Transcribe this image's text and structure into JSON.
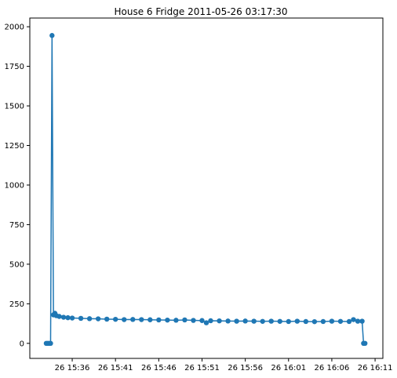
{
  "chart_data": {
    "type": "line",
    "title": "House 6 Fridge 2011-05-26 03:17:30",
    "xlabel": "",
    "ylabel": "",
    "x_unit": "minutes (time of day)",
    "xlim": [
      "15:31:06",
      "16:11:54"
    ],
    "ylim": [
      -95,
      2055
    ],
    "grid": false,
    "legend": "none",
    "marker": "circle",
    "color": "#1f77b4",
    "x_ticks": [
      {
        "value": "15:36",
        "label": "26 15:36"
      },
      {
        "value": "15:41",
        "label": "26 15:41"
      },
      {
        "value": "15:46",
        "label": "26 15:46"
      },
      {
        "value": "15:51",
        "label": "26 15:51"
      },
      {
        "value": "15:56",
        "label": "26 15:56"
      },
      {
        "value": "16:01",
        "label": "26 16:01"
      },
      {
        "value": "16:06",
        "label": "26 16:06"
      },
      {
        "value": "16:11",
        "label": "26 16:11"
      }
    ],
    "y_ticks": [
      0,
      250,
      500,
      750,
      1000,
      1250,
      1500,
      1750,
      2000
    ],
    "series": [
      {
        "points": [
          [
            "15:33:00",
            0
          ],
          [
            "15:33:10",
            0
          ],
          [
            "15:33:20",
            0
          ],
          [
            "15:33:30",
            0
          ],
          [
            "15:33:40",
            1945
          ],
          [
            "15:33:50",
            180
          ],
          [
            "15:34:00",
            190
          ],
          [
            "15:34:10",
            175
          ],
          [
            "15:34:30",
            170
          ],
          [
            "15:35:00",
            165
          ],
          [
            "15:35:30",
            162
          ],
          [
            "15:36:00",
            160
          ],
          [
            "15:37:00",
            158
          ],
          [
            "15:38:00",
            156
          ],
          [
            "15:39:00",
            155
          ],
          [
            "15:40:00",
            153
          ],
          [
            "15:41:00",
            152
          ],
          [
            "15:42:00",
            150
          ],
          [
            "15:43:00",
            151
          ],
          [
            "15:44:00",
            150
          ],
          [
            "15:45:00",
            149
          ],
          [
            "15:46:00",
            148
          ],
          [
            "15:47:00",
            147
          ],
          [
            "15:48:00",
            146
          ],
          [
            "15:49:00",
            148
          ],
          [
            "15:50:00",
            145
          ],
          [
            "15:51:00",
            144
          ],
          [
            "15:51:30",
            130
          ],
          [
            "15:52:00",
            143
          ],
          [
            "15:53:00",
            142
          ],
          [
            "15:54:00",
            141
          ],
          [
            "15:55:00",
            140
          ],
          [
            "15:56:00",
            141
          ],
          [
            "15:57:00",
            140
          ],
          [
            "15:58:00",
            139
          ],
          [
            "15:59:00",
            140
          ],
          [
            "16:00:00",
            139
          ],
          [
            "16:01:00",
            138
          ],
          [
            "16:02:00",
            140
          ],
          [
            "16:03:00",
            138
          ],
          [
            "16:04:00",
            137
          ],
          [
            "16:05:00",
            138
          ],
          [
            "16:06:00",
            140
          ],
          [
            "16:07:00",
            139
          ],
          [
            "16:08:00",
            138
          ],
          [
            "16:08:30",
            150
          ],
          [
            "16:09:00",
            140
          ],
          [
            "16:09:30",
            140
          ],
          [
            "16:09:40",
            0
          ],
          [
            "16:09:50",
            0
          ]
        ]
      }
    ]
  }
}
